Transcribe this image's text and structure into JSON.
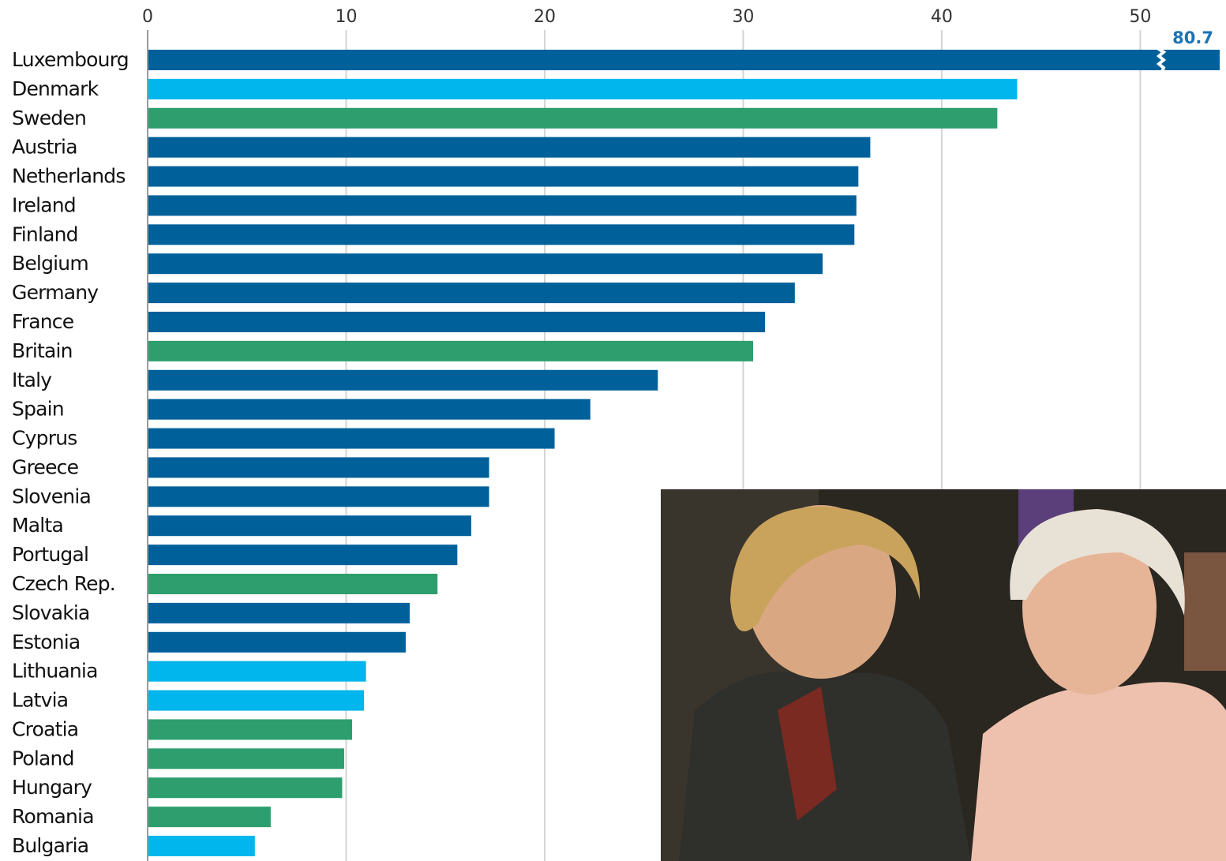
{
  "chart_data": {
    "type": "hbar",
    "categories": [
      "Luxembourg",
      "Denmark",
      "Sweden",
      "Austria",
      "Netherlands",
      "Ireland",
      "Finland",
      "Belgium",
      "Germany",
      "France",
      "Britain",
      "Italy",
      "Spain",
      "Cyprus",
      "Greece",
      "Slovenia",
      "Malta",
      "Portugal",
      "Czech Rep.",
      "Slovakia",
      "Estonia",
      "Lithuania",
      "Latvia",
      "Croatia",
      "Poland",
      "Hungary",
      "Romania",
      "Bulgaria"
    ],
    "values": [
      80.7,
      43.8,
      42.8,
      36.4,
      35.8,
      35.7,
      35.6,
      34.0,
      32.6,
      31.1,
      30.5,
      25.7,
      22.3,
      20.5,
      17.2,
      17.2,
      16.3,
      15.6,
      14.6,
      13.2,
      13.0,
      11.0,
      10.9,
      10.3,
      9.9,
      9.8,
      6.2,
      5.4
    ],
    "value_labels": [
      "80.7",
      null,
      null,
      null,
      null,
      null,
      null,
      null,
      null,
      null,
      null,
      null,
      null,
      null,
      null,
      null,
      null,
      null,
      null,
      null,
      null,
      null,
      null,
      null,
      null,
      null,
      null,
      null
    ],
    "colors": [
      "#00609a",
      "#00b6ec",
      "#2e9e6e",
      "#00609a",
      "#00609a",
      "#00609a",
      "#00609a",
      "#00609a",
      "#00609a",
      "#00609a",
      "#2e9e6e",
      "#00609a",
      "#00609a",
      "#00609a",
      "#00609a",
      "#00609a",
      "#00609a",
      "#00609a",
      "#2e9e6e",
      "#00609a",
      "#00609a",
      "#00b6ec",
      "#00b6ec",
      "#2e9e6e",
      "#2e9e6e",
      "#2e9e6e",
      "#2e9e6e",
      "#00b6ec"
    ],
    "xlim": [
      0,
      54
    ],
    "xticks": [
      0,
      10,
      20,
      30,
      40,
      50
    ],
    "grid": true
  }
}
